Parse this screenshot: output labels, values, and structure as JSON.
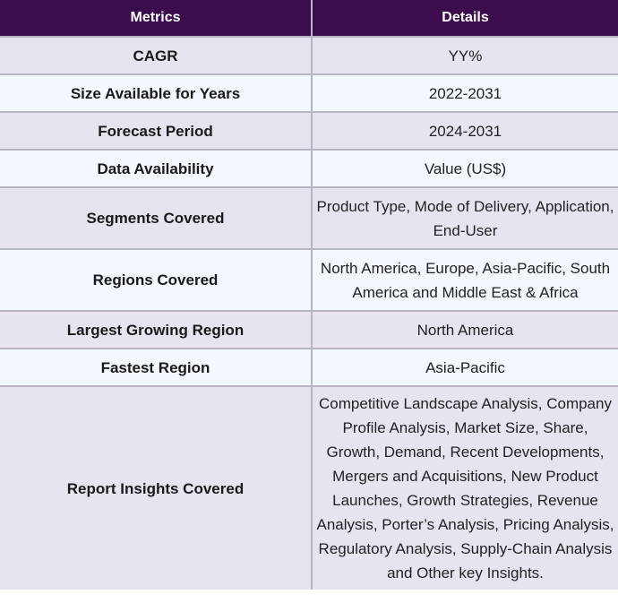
{
  "table": {
    "headers": [
      "Metrics",
      "Details"
    ],
    "rows": [
      {
        "metric": "CAGR",
        "details": "YY%"
      },
      {
        "metric": "Size Available for Years",
        "details": "2022-2031"
      },
      {
        "metric": "Forecast Period",
        "details": "2024-2031"
      },
      {
        "metric": "Data Availability",
        "details": "Value (US$)"
      },
      {
        "metric": "Segments Covered",
        "details": "Product Type, Mode of Delivery, Application, End-User"
      },
      {
        "metric": "Regions Covered",
        "details": "North America, Europe, Asia-Pacific, South America and Middle East & Africa"
      },
      {
        "metric": "Largest Growing Region",
        "details": "North America"
      },
      {
        "metric": "Fastest Region",
        "details": "Asia-Pacific"
      },
      {
        "metric": "Report Insights Covered",
        "details": "Competitive Landscape Analysis, Company Profile Analysis, Market Size, Share, Growth, Demand, Recent Developments, Mergers and Acquisitions, New Product Launches, Growth Strategies, Revenue Analysis, Porter’s Analysis, Pricing Analysis, Regulatory Analysis, Supply-Chain Analysis and Other key Insights."
      }
    ]
  }
}
